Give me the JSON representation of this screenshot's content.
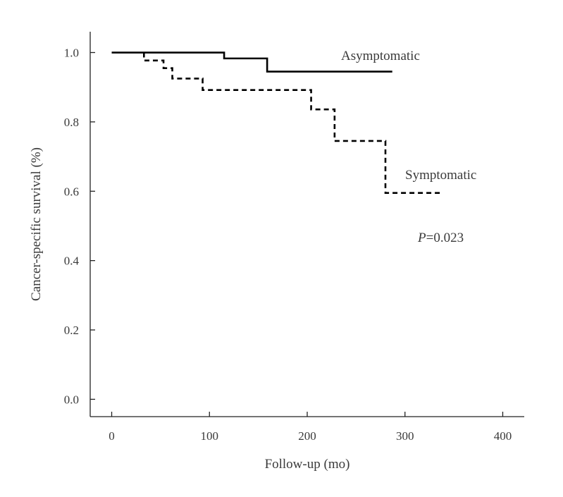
{
  "chart_data": {
    "type": "line",
    "title": "",
    "xlabel": "Follow-up (mo)",
    "ylabel": "Cancer-specific survival (%)",
    "xlim": [
      -22,
      422
    ],
    "ylim": [
      -0.05,
      1.06
    ],
    "xticks": [
      0,
      100,
      200,
      300,
      400
    ],
    "xtick_labels": [
      "0",
      "100",
      "200",
      "300",
      "400"
    ],
    "yticks": [
      0.0,
      0.2,
      0.4,
      0.6,
      0.8,
      1.0
    ],
    "ytick_labels": [
      "0.0",
      "0.2",
      "0.4",
      "0.6",
      "0.8",
      "1.0"
    ],
    "grid": false,
    "legend": "none",
    "series": [
      {
        "label": "Asymptomatic",
        "style": "solid",
        "step": true,
        "x": [
          0,
          115,
          159,
          287
        ],
        "y": [
          1.0,
          0.983,
          0.945,
          0.945
        ]
      },
      {
        "label": "Symptomatic",
        "style": "dashed",
        "step": true,
        "x": [
          33,
          33,
          53,
          62,
          93,
          204,
          228,
          280,
          339
        ],
        "y": [
          1.0,
          0.977,
          0.955,
          0.925,
          0.892,
          0.836,
          0.745,
          0.595,
          0.595
        ]
      }
    ],
    "annotation": {
      "p_symbol": "P",
      "p_value": "=0.023"
    }
  }
}
